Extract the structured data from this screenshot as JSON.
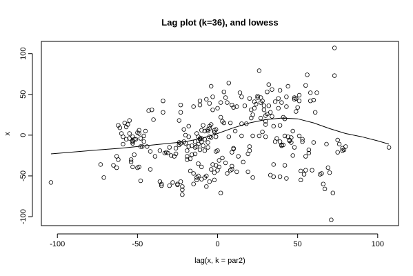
{
  "chart_data": {
    "type": "scatter",
    "title": "Lag plot (k=36), and lowess",
    "xlabel": "lag(x, k = par2)",
    "ylabel": "x",
    "xlim": [
      -110,
      113
    ],
    "ylim": [
      -111,
      115
    ],
    "x_ticks": [
      -100,
      -50,
      0,
      50,
      100
    ],
    "y_ticks": [
      -100,
      -50,
      0,
      50,
      100
    ],
    "point_color": "#000000",
    "line_color": "#000000",
    "grid": false,
    "legend": "none",
    "series": [
      {
        "type": "scatter",
        "points": [
          [
            -104,
            -58
          ],
          [
            -73,
            -36
          ],
          [
            -71,
            -52
          ],
          [
            -65,
            -37
          ],
          [
            -63,
            -40
          ],
          [
            -63,
            -26
          ],
          [
            -62,
            -30
          ],
          [
            -62,
            12
          ],
          [
            -61,
            9
          ],
          [
            -60,
            2
          ],
          [
            -59,
            -11
          ],
          [
            -59,
            -2
          ],
          [
            -58,
            15
          ],
          [
            -57,
            -5
          ],
          [
            -57,
            10
          ],
          [
            -56,
            13
          ],
          [
            -55,
            2
          ],
          [
            -55,
            -4
          ],
          [
            -55,
            18
          ],
          [
            -54,
            -30
          ],
          [
            -54,
            -33
          ],
          [
            -53,
            -10
          ],
          [
            -53,
            -8
          ],
          [
            -53,
            -2
          ],
          [
            -53,
            -7
          ],
          [
            -53,
            -39
          ],
          [
            -52,
            -5
          ],
          [
            -52,
            -24
          ],
          [
            -51,
            -5
          ],
          [
            -50,
            3
          ],
          [
            -50,
            -40
          ],
          [
            -49,
            6
          ],
          [
            -49,
            -39
          ],
          [
            -49,
            2
          ],
          [
            -48,
            -4
          ],
          [
            -48,
            -14
          ],
          [
            -48,
            -56
          ],
          [
            -47,
            -14
          ],
          [
            -46,
            -1
          ],
          [
            -46,
            -8
          ],
          [
            -45,
            5
          ],
          [
            -44,
            -14
          ],
          [
            -43,
            30
          ],
          [
            -42,
            -42
          ],
          [
            -42,
            -20
          ],
          [
            -41,
            31
          ],
          [
            -40,
            19
          ],
          [
            -39,
            -26
          ],
          [
            -36,
            -19
          ],
          [
            -36,
            -57
          ],
          [
            -35,
            -60
          ],
          [
            -35,
            -62
          ],
          [
            -34,
            28
          ],
          [
            -34,
            42
          ],
          [
            -33,
            -22
          ],
          [
            -32,
            -21
          ],
          [
            -31,
            -22
          ],
          [
            -30,
            -15
          ],
          [
            -30,
            -62
          ],
          [
            -29,
            -25
          ],
          [
            -28,
            -58
          ],
          [
            -27,
            -26
          ],
          [
            -26,
            -16
          ],
          [
            -26,
            -23
          ],
          [
            -25,
            -60
          ],
          [
            -25,
            -61
          ],
          [
            -24,
            18
          ],
          [
            -24,
            -9
          ],
          [
            -24,
            -12
          ],
          [
            -23,
            -57
          ],
          [
            -23,
            28
          ],
          [
            -23,
            37
          ],
          [
            -23,
            -10
          ],
          [
            -22,
            -63
          ],
          [
            -22,
            -67
          ],
          [
            -22,
            -73
          ],
          [
            -21,
            7
          ],
          [
            -21,
            -8
          ],
          [
            -20,
            0
          ],
          [
            -20,
            -10
          ],
          [
            -19,
            -26
          ],
          [
            -19,
            -19
          ],
          [
            -19,
            -30
          ],
          [
            -18,
            -14
          ],
          [
            -18,
            -2
          ],
          [
            -18,
            11
          ],
          [
            -17,
            -29
          ],
          [
            -17,
            -44
          ],
          [
            -16,
            -24
          ],
          [
            -16,
            -13
          ],
          [
            -15,
            -60
          ],
          [
            -15,
            -47
          ],
          [
            -15,
            35
          ],
          [
            -14,
            -8
          ],
          [
            -14,
            -23
          ],
          [
            -14,
            -15
          ],
          [
            -13,
            -14
          ],
          [
            -13,
            2
          ],
          [
            -13,
            -52
          ],
          [
            -13,
            -55
          ],
          [
            -12,
            -2
          ],
          [
            -12,
            -11
          ],
          [
            -12,
            -50
          ],
          [
            -12,
            -35
          ],
          [
            -11,
            -4
          ],
          [
            -11,
            -18
          ],
          [
            -11,
            -5
          ],
          [
            -11,
            42
          ],
          [
            -11,
            37
          ],
          [
            -10,
            -8
          ],
          [
            -10,
            6
          ],
          [
            -10,
            -54
          ],
          [
            -10,
            -39
          ],
          [
            -10,
            -4
          ],
          [
            -9,
            12
          ],
          [
            -9,
            -13
          ],
          [
            -8,
            5
          ],
          [
            -8,
            -5
          ],
          [
            -8,
            -19
          ],
          [
            -8,
            -52
          ],
          [
            -7,
            -50
          ],
          [
            -7,
            -63
          ],
          [
            -7,
            44
          ],
          [
            -6,
            -9
          ],
          [
            -6,
            5
          ],
          [
            -6,
            -15
          ],
          [
            -6,
            7
          ],
          [
            -5,
            11
          ],
          [
            -5,
            -57
          ],
          [
            -5,
            -2
          ],
          [
            -5,
            39
          ],
          [
            -5,
            8
          ],
          [
            -4,
            -3
          ],
          [
            -4,
            13
          ],
          [
            -4,
            -42
          ],
          [
            -4,
            60
          ],
          [
            -3,
            47
          ],
          [
            -3,
            -36
          ],
          [
            -3,
            31
          ],
          [
            -2,
            6
          ],
          [
            -2,
            4
          ],
          [
            -2,
            -46
          ],
          [
            -2,
            -55
          ],
          [
            -1,
            7
          ],
          [
            -1,
            -2
          ],
          [
            -1,
            -37
          ],
          [
            -1,
            -20
          ],
          [
            0,
            33
          ],
          [
            0,
            -43
          ],
          [
            0,
            -19
          ],
          [
            1,
            -39
          ],
          [
            1,
            -31
          ],
          [
            2,
            -71
          ],
          [
            2,
            22
          ],
          [
            2,
            40
          ],
          [
            3,
            17
          ],
          [
            3,
            -28
          ],
          [
            4,
            53
          ],
          [
            4,
            15
          ],
          [
            5,
            -34
          ],
          [
            5,
            46
          ],
          [
            6,
            40
          ],
          [
            6,
            -47
          ],
          [
            7,
            -2
          ],
          [
            7,
            64
          ],
          [
            8,
            -43
          ],
          [
            8,
            15
          ],
          [
            9,
            -38
          ],
          [
            9,
            -42
          ],
          [
            9,
            -21
          ],
          [
            9,
            37
          ],
          [
            10,
            -16
          ],
          [
            10,
            -17
          ],
          [
            10,
            34
          ],
          [
            11,
            5
          ],
          [
            12,
            35
          ],
          [
            12,
            -45
          ],
          [
            13,
            -26
          ],
          [
            14,
            52
          ],
          [
            15,
            47
          ],
          [
            15,
            -1
          ],
          [
            15,
            14
          ],
          [
            16,
            -33
          ],
          [
            17,
            36
          ],
          [
            18,
            14
          ],
          [
            19,
            -23
          ],
          [
            19,
            -45
          ],
          [
            20,
            -14
          ],
          [
            20,
            -19
          ],
          [
            20,
            45
          ],
          [
            21,
            31
          ],
          [
            21,
            21
          ],
          [
            22,
            25
          ],
          [
            22,
            -52
          ],
          [
            22,
            -1
          ],
          [
            23,
            33
          ],
          [
            23,
            41
          ],
          [
            24,
            38
          ],
          [
            25,
            48
          ],
          [
            25,
            46
          ],
          [
            26,
            -1
          ],
          [
            26,
            79
          ],
          [
            27,
            21
          ],
          [
            27,
            40
          ],
          [
            27,
            46
          ],
          [
            28,
            4
          ],
          [
            28,
            42
          ],
          [
            29,
            36
          ],
          [
            29,
            31
          ],
          [
            30,
            -2
          ],
          [
            30,
            24
          ],
          [
            30,
            13
          ],
          [
            30,
            17
          ],
          [
            31,
            26
          ],
          [
            31,
            53
          ],
          [
            32,
            36
          ],
          [
            32,
            62
          ],
          [
            33,
            -49
          ],
          [
            33,
            28
          ],
          [
            34,
            56
          ],
          [
            34,
            23
          ],
          [
            35,
            -51
          ],
          [
            35,
            -36
          ],
          [
            35,
            11
          ],
          [
            36,
            -8
          ],
          [
            36,
            41
          ],
          [
            37,
            -4
          ],
          [
            38,
            45
          ],
          [
            38,
            33
          ],
          [
            39,
            -8
          ],
          [
            39,
            55
          ],
          [
            39,
            -51
          ],
          [
            39,
            12
          ],
          [
            40,
            -12
          ],
          [
            40,
            -13
          ],
          [
            40,
            40
          ],
          [
            41,
            22
          ],
          [
            41,
            -12
          ],
          [
            42,
            -37
          ],
          [
            42,
            20
          ],
          [
            42,
            -1
          ],
          [
            43,
            -53
          ],
          [
            43,
            35
          ],
          [
            43,
            47
          ],
          [
            44,
            60
          ],
          [
            44,
            -2
          ],
          [
            45,
            -7
          ],
          [
            45,
            -6
          ],
          [
            46,
            -3
          ],
          [
            46,
            -9
          ],
          [
            47,
            5
          ],
          [
            47,
            -25
          ],
          [
            48,
            46
          ],
          [
            48,
            -15
          ],
          [
            48,
            44
          ],
          [
            49,
            29
          ],
          [
            49,
            45
          ],
          [
            50,
            34
          ],
          [
            51,
            49
          ],
          [
            51,
            42
          ],
          [
            51,
            -1
          ],
          [
            52,
            -55
          ],
          [
            52,
            -44
          ],
          [
            53,
            -5
          ],
          [
            53,
            -8
          ],
          [
            54,
            -48
          ],
          [
            55,
            -43
          ],
          [
            55,
            -26
          ],
          [
            55,
            61
          ],
          [
            56,
            74
          ],
          [
            57,
            -18
          ],
          [
            57,
            -22
          ],
          [
            58,
            52
          ],
          [
            58,
            42
          ],
          [
            59,
            -43
          ],
          [
            60,
            -9
          ],
          [
            60,
            43
          ],
          [
            61,
            28
          ],
          [
            62,
            52
          ],
          [
            64,
            -48
          ],
          [
            65,
            -47
          ],
          [
            66,
            -60
          ],
          [
            67,
            -66
          ],
          [
            68,
            -11
          ],
          [
            69,
            -40
          ],
          [
            70,
            -46
          ],
          [
            71,
            -104
          ],
          [
            72,
            -71
          ],
          [
            73,
            73
          ],
          [
            73,
            107
          ],
          [
            75,
            -6
          ],
          [
            75,
            -21
          ],
          [
            76,
            -11
          ],
          [
            78,
            -19
          ],
          [
            78,
            -16
          ],
          [
            79,
            -18
          ],
          [
            80,
            -14
          ],
          [
            107,
            -15
          ]
        ]
      },
      {
        "type": "line",
        "name": "lowess",
        "points": [
          [
            -104,
            -23
          ],
          [
            -80,
            -19
          ],
          [
            -60,
            -16
          ],
          [
            -40,
            -12
          ],
          [
            -20,
            -8
          ],
          [
            -10,
            -4
          ],
          [
            0,
            2
          ],
          [
            10,
            9
          ],
          [
            20,
            15
          ],
          [
            30,
            19
          ],
          [
            40,
            21
          ],
          [
            50,
            20
          ],
          [
            60,
            15
          ],
          [
            70,
            8
          ],
          [
            80,
            2
          ],
          [
            90,
            -2
          ],
          [
            100,
            -7
          ],
          [
            107,
            -11
          ]
        ]
      }
    ]
  }
}
